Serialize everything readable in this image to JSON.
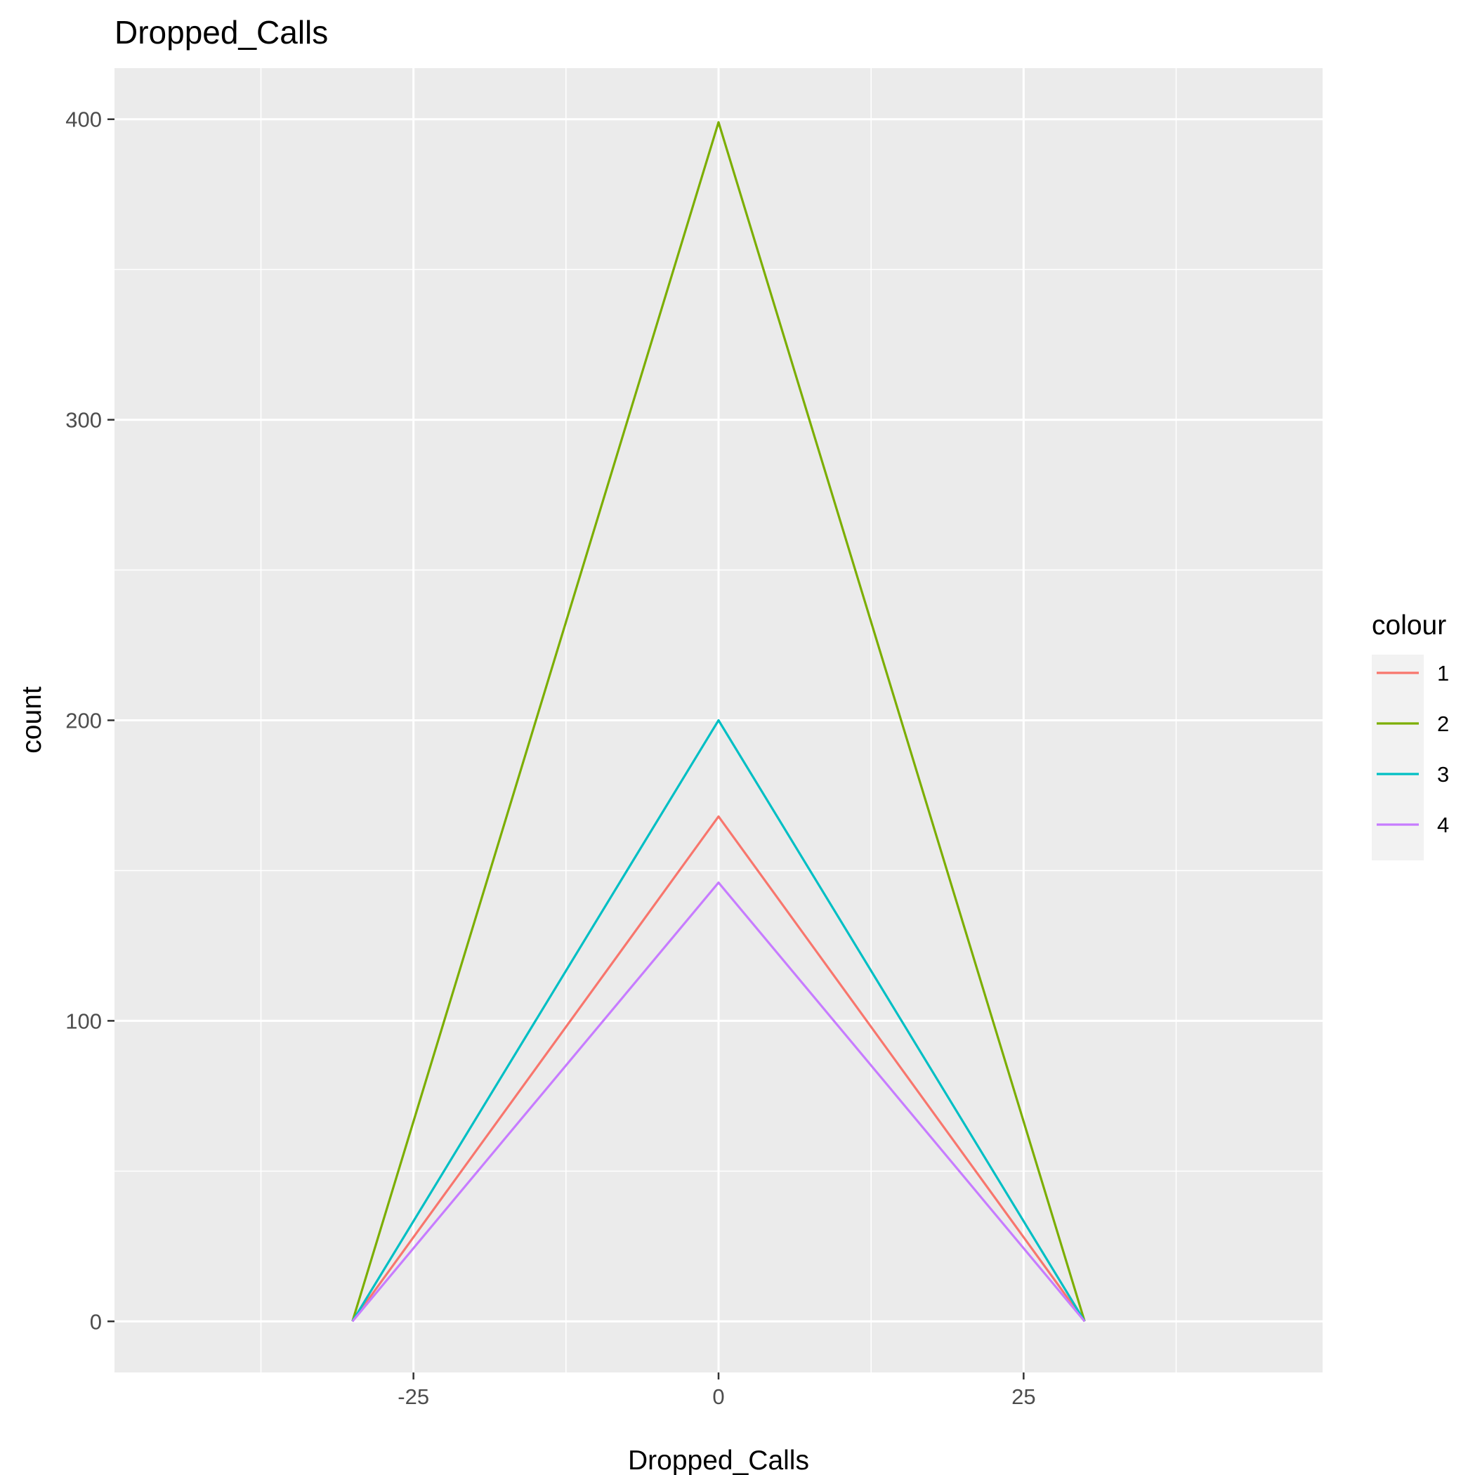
{
  "chart_data": {
    "type": "line",
    "title": "Dropped_Calls",
    "xlabel": "Dropped_Calls",
    "ylabel": "count",
    "x": [
      -30,
      0,
      30
    ],
    "xlim": [
      -49.5,
      49.5
    ],
    "ylim": [
      -17,
      417
    ],
    "x_ticks": [
      -25,
      0,
      25
    ],
    "x_tick_labels": [
      "-25",
      "0",
      "25"
    ],
    "y_ticks": [
      0,
      100,
      200,
      300,
      400
    ],
    "y_tick_labels": [
      "0",
      "100",
      "200",
      "300",
      "400"
    ],
    "grid": true,
    "legend": {
      "title": "colour",
      "position": "right"
    },
    "series": [
      {
        "name": "1",
        "color": "#F8766D",
        "values": [
          0,
          168,
          0
        ]
      },
      {
        "name": "2",
        "color": "#7CAE00",
        "values": [
          0,
          399,
          0
        ]
      },
      {
        "name": "3",
        "color": "#00BFC4",
        "values": [
          0,
          200,
          0
        ]
      },
      {
        "name": "4",
        "color": "#C77CFF",
        "values": [
          0,
          146,
          0
        ]
      }
    ]
  }
}
